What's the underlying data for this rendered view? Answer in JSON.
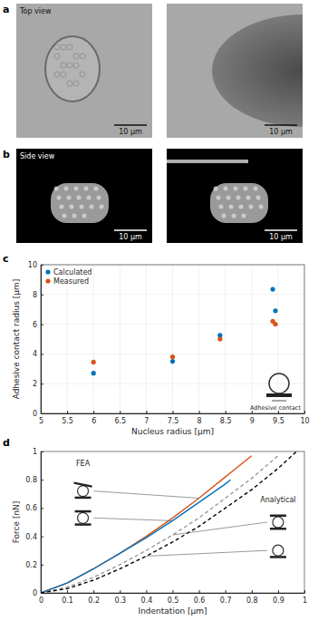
{
  "panels": [
    {
      "label": "a",
      "images": [
        {
          "caption": "Top view",
          "scale_bar": "10 μm"
        },
        {
          "scale_bar": "10 μm"
        }
      ]
    },
    {
      "label": "b",
      "images": [
        {
          "caption": "Side view",
          "scale_bar": "10 μm"
        },
        {
          "scale_bar": "10 μm"
        }
      ]
    }
  ],
  "chart_data": [
    {
      "type": "scatter",
      "title": "c",
      "xlabel": "Nucleus radius [μm]",
      "ylabel": "Adhesive contact radius [μm]",
      "xlim": [
        5,
        10
      ],
      "ylim": [
        0,
        10
      ],
      "xticks": [
        5,
        5.5,
        6,
        6.5,
        7,
        7.5,
        8,
        8.5,
        9,
        9.5,
        10
      ],
      "yticks": [
        0,
        2,
        4,
        6,
        8,
        10
      ],
      "grid": true,
      "legend": "upper left",
      "series": [
        {
          "name": "Calculated",
          "color": "#0072bd",
          "x": [
            6.0,
            7.5,
            8.4,
            9.4,
            9.45
          ],
          "values": [
            2.7,
            3.5,
            5.25,
            8.35,
            6.9
          ]
        },
        {
          "name": "Measured",
          "color": "#d95319",
          "x": [
            6.0,
            7.5,
            8.4,
            9.4,
            9.45
          ],
          "values": [
            3.45,
            3.8,
            5.0,
            6.2,
            6.0
          ]
        }
      ],
      "annotations": [
        "Adhesive contact"
      ]
    },
    {
      "type": "line",
      "title": "d",
      "xlabel": "Indentation [μm]",
      "ylabel": "Force [nN]",
      "xlim": [
        0,
        1
      ],
      "ylim": [
        0,
        1
      ],
      "xticks": [
        0,
        0.1,
        0.2,
        0.3,
        0.4,
        0.5,
        0.6,
        0.7,
        0.8,
        0.9,
        1
      ],
      "yticks": [
        0,
        0.2,
        0.4,
        0.6,
        0.8,
        1
      ],
      "grid": false,
      "series": [
        {
          "color": "#d95319",
          "line_style": "solid",
          "x": [
            0,
            0.1,
            0.2,
            0.3,
            0.4,
            0.5,
            0.6,
            0.7,
            0.8
          ],
          "values": [
            0,
            0.07,
            0.17,
            0.28,
            0.4,
            0.53,
            0.67,
            0.82,
            0.97
          ]
        },
        {
          "color": "#0072bd",
          "line_style": "solid",
          "x": [
            0,
            0.1,
            0.2,
            0.3,
            0.4,
            0.5,
            0.6,
            0.7,
            0.72
          ],
          "values": [
            0,
            0.07,
            0.17,
            0.28,
            0.39,
            0.51,
            0.64,
            0.77,
            0.8
          ]
        },
        {
          "color": "#999999",
          "line_style": "dashed",
          "x": [
            0,
            0.1,
            0.2,
            0.3,
            0.4,
            0.5,
            0.6,
            0.7,
            0.8,
            0.9
          ],
          "values": [
            0,
            0.04,
            0.11,
            0.2,
            0.3,
            0.41,
            0.53,
            0.67,
            0.81,
            0.97
          ]
        },
        {
          "color": "#000000",
          "line_style": "dashed",
          "x": [
            0,
            0.1,
            0.2,
            0.3,
            0.4,
            0.5,
            0.6,
            0.7,
            0.8,
            0.9,
            0.97
          ],
          "values": [
            0,
            0.03,
            0.09,
            0.17,
            0.26,
            0.36,
            0.47,
            0.6,
            0.73,
            0.88,
            1.0
          ]
        }
      ],
      "annotations": [
        "FEA",
        "Analytical"
      ]
    }
  ]
}
